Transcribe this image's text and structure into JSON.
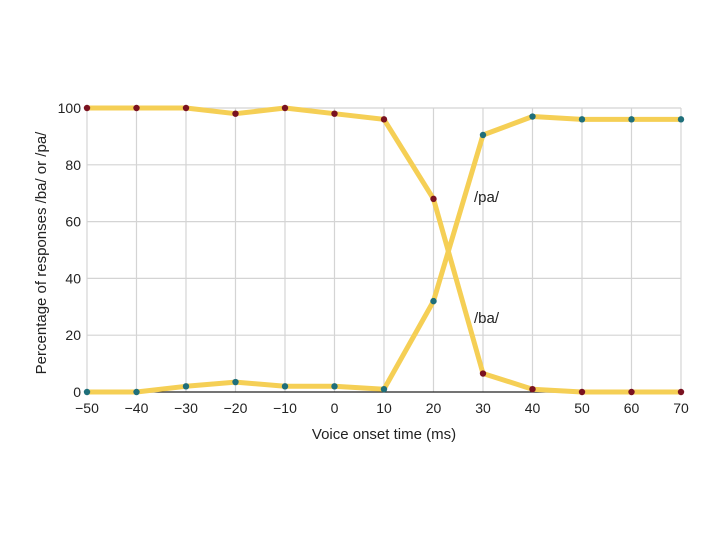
{
  "chart_data": {
    "type": "line",
    "title": "",
    "xlabel": "Voice onset time (ms)",
    "ylabel": "Percentage of responses /ba/ or /pa/",
    "xlim": [
      -50,
      70
    ],
    "ylim": [
      0,
      100
    ],
    "x_ticks": [
      -50,
      -40,
      -30,
      -20,
      -10,
      0,
      10,
      20,
      30,
      40,
      50,
      60,
      70
    ],
    "x_tick_labels": [
      "−50",
      "−40",
      "−30",
      "−20",
      "−10",
      "0",
      "10",
      "20",
      "30",
      "40",
      "50",
      "60",
      "70"
    ],
    "y_ticks": [
      0,
      20,
      40,
      60,
      80,
      100
    ],
    "y_tick_labels": [
      "0",
      "20",
      "40",
      "60",
      "80",
      "100"
    ],
    "grid": true,
    "line_color": "#f5cf55",
    "x": [
      -50,
      -40,
      -30,
      -20,
      -10,
      0,
      10,
      20,
      30,
      40,
      50,
      60,
      70
    ],
    "series": [
      {
        "name": "/ba/",
        "marker_color": "#7a1220",
        "values": [
          100,
          100,
          100,
          98,
          100,
          98,
          96,
          68,
          6.5,
          1,
          0,
          0,
          0
        ]
      },
      {
        "name": "/pa/",
        "marker_color": "#1f6f7a",
        "values": [
          0,
          0,
          2,
          3.5,
          2,
          2,
          1,
          32,
          90.5,
          97,
          96,
          96,
          96
        ]
      }
    ]
  }
}
